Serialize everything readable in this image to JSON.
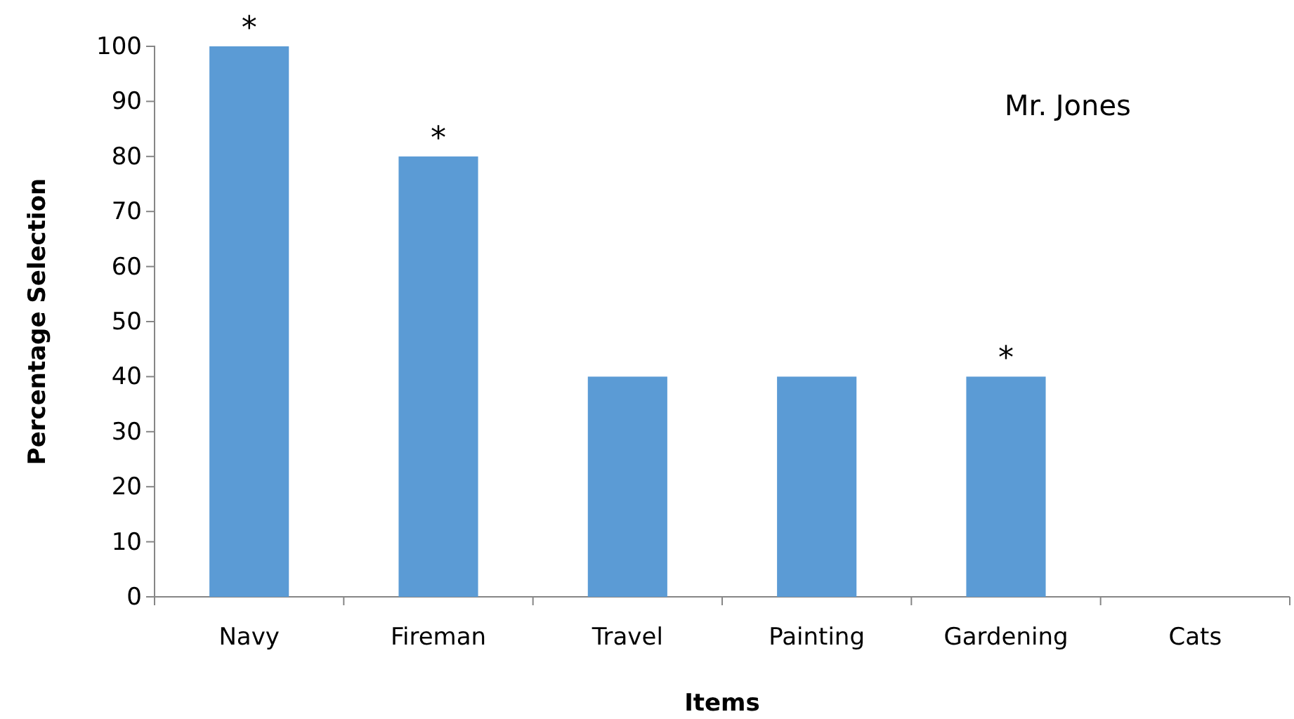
{
  "chart_data": {
    "type": "bar",
    "xlabel": "Items",
    "ylabel": "Percentage Selection",
    "categories": [
      "Navy",
      "Fireman",
      "Travel",
      "Painting",
      "Gardening",
      "Cats"
    ],
    "values": [
      100,
      80,
      40,
      40,
      40,
      0
    ],
    "color": "#5b9bd5",
    "ylim": [
      0,
      100
    ],
    "yticks": [
      0,
      10,
      20,
      30,
      40,
      50,
      60,
      70,
      80,
      90,
      100
    ],
    "annotations": [
      "Mr. Jones",
      {
        "text": "*",
        "x": "Navy",
        "y": 100
      },
      {
        "text": "*",
        "x": "Fireman",
        "y": 80
      },
      {
        "text": "*",
        "x": "Gardening",
        "y": 40
      }
    ]
  }
}
